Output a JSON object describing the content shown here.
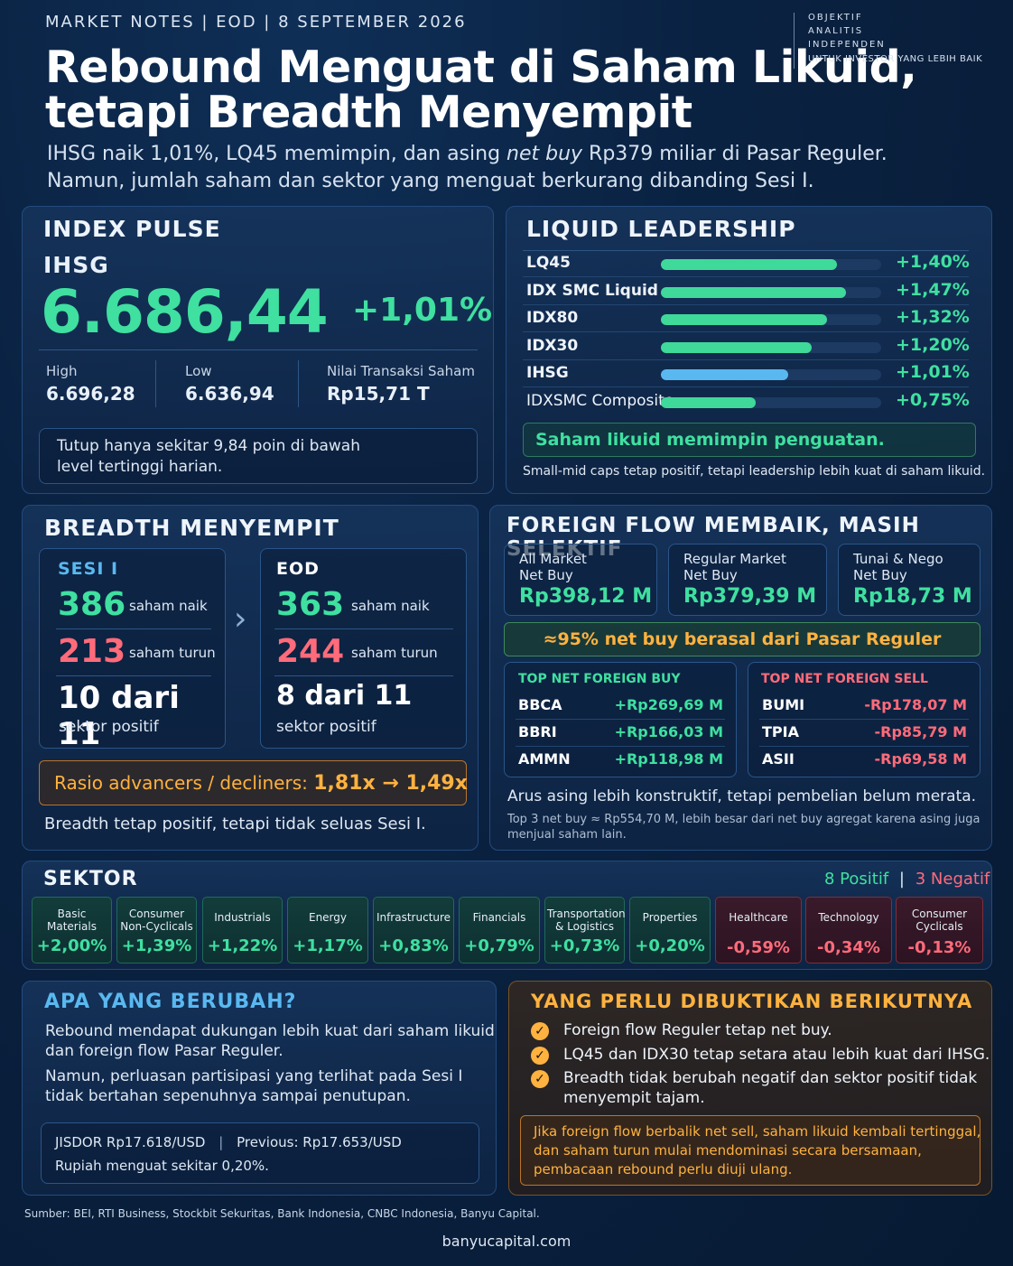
{
  "header": {
    "kicker": "MARKET NOTES | EOD | 8 SEPTEMBER 2026",
    "title_line1": "Rebound Menguat di Saham Likuid,",
    "title_line2": "tetapi Breadth Menyempit",
    "sub_line1_a": "IHSG naik 1,01%, LQ45 memimpin, dan asing ",
    "sub_line1_em": "net buy",
    "sub_line1_b": " Rp379 miliar di Pasar Reguler.",
    "sub_line2": "Namun, jumlah saham dan sektor yang menguat berkurang dibanding Sesi I.",
    "brand_l1": "OBJEKTIF",
    "brand_l2": "ANALITIS",
    "brand_l3": "INDEPENDEN",
    "brand_l4": "UNTUK INVESTOR YANG LEBIH BAIK"
  },
  "index_pulse": {
    "title": "INDEX PULSE",
    "index_name": "IHSG",
    "value": "6.686,44",
    "change": "+1,01%",
    "high_label": "High",
    "high_value": "6.696,28",
    "low_label": "Low",
    "low_value": "6.636,94",
    "tx_label": "Nilai Transaksi Saham",
    "tx_value": "Rp15,71 T",
    "note_l1": "Tutup hanya sekitar 9,84 poin di bawah",
    "note_l2": "level tertinggi harian."
  },
  "liquid": {
    "title": "LIQUID LEADERSHIP",
    "rows": [
      {
        "name": "LQ45",
        "value": "+1,40%",
        "pct": 1.4,
        "color": "#3fd99a"
      },
      {
        "name": "IDX SMC Liquid",
        "value": "+1,47%",
        "pct": 1.47,
        "color": "#3fd99a"
      },
      {
        "name": "IDX80",
        "value": "+1,32%",
        "pct": 1.32,
        "color": "#3fd99a"
      },
      {
        "name": "IDX30",
        "value": "+1,20%",
        "pct": 1.2,
        "color": "#3fd99a"
      },
      {
        "name": "IHSG",
        "value": "+1,01%",
        "pct": 1.01,
        "color": "#5ab8f0"
      },
      {
        "name": "IDXSMC Composite",
        "value": "+0,75%",
        "pct": 0.75,
        "color": "#3fd99a"
      }
    ],
    "callout": "Saham likuid memimpin penguatan.",
    "footnote": "Small-mid caps tetap positif, tetapi leadership lebih kuat di saham likuid."
  },
  "breadth": {
    "title": "BREADTH MENYEMPIT",
    "s1_label": "SESI I",
    "s1_up": "386",
    "s1_down": "213",
    "s1_sector": "10 dari 11",
    "eod_label": "EOD",
    "eod_up": "363",
    "eod_down": "244",
    "eod_sector": "8 dari 11",
    "up_text": "saham naik",
    "down_text": "saham turun",
    "sector_text": "sektor positif",
    "arrow": "›",
    "ratio_label": "Rasio advancers / decliners: ",
    "ratio_value": "1,81x → 1,49x",
    "footnote": "Breadth tetap positif, tetapi tidak seluas Sesi I."
  },
  "foreign": {
    "title": "FOREIGN FLOW MEMBAIK, MASIH SELEKTIF",
    "cards": [
      {
        "l1": "All Market",
        "l2": "Net Buy",
        "value": "Rp398,12 M"
      },
      {
        "l1": "Regular Market",
        "l2": "Net Buy",
        "value": "Rp379,39 M"
      },
      {
        "l1": "Tunai & Nego",
        "l2": "Net Buy",
        "value": "Rp18,73 M"
      }
    ],
    "banner": "≈95% net buy berasal dari Pasar Reguler",
    "buy_title": "TOP NET FOREIGN BUY",
    "buy": [
      {
        "ticker": "BBCA",
        "value": "+Rp269,69 M"
      },
      {
        "ticker": "BBRI",
        "value": "+Rp166,03 M"
      },
      {
        "ticker": "AMMN",
        "value": "+Rp118,98 M"
      }
    ],
    "sell_title": "TOP NET FOREIGN SELL",
    "sell": [
      {
        "ticker": "BUMI",
        "value": "-Rp178,07 M"
      },
      {
        "ticker": "TPIA",
        "value": "-Rp85,79 M"
      },
      {
        "ticker": "ASII",
        "value": "-Rp69,58 M"
      }
    ],
    "note": "Arus asing lebih konstruktif, tetapi pembelian belum merata.",
    "fine_l1": "Top 3 net buy ≈ Rp554,70 M, lebih besar dari net buy agregat karena asing juga",
    "fine_l2": "menjual saham lain."
  },
  "sektor": {
    "title": "SEKTOR",
    "pos_count": "8 Positif",
    "sep": "|",
    "neg_count": "3 Negatif",
    "tiles": [
      {
        "l1": "Basic",
        "l2": "Materials",
        "value": "+2,00%",
        "sign": "pos"
      },
      {
        "l1": "Consumer",
        "l2": "Non-Cyclicals",
        "value": "+1,39%",
        "sign": "pos"
      },
      {
        "l1": "Industrials",
        "l2": "",
        "value": "+1,22%",
        "sign": "pos"
      },
      {
        "l1": "Energy",
        "l2": "",
        "value": "+1,17%",
        "sign": "pos"
      },
      {
        "l1": "Infrastructure",
        "l2": "",
        "value": "+0,83%",
        "sign": "pos"
      },
      {
        "l1": "Financials",
        "l2": "",
        "value": "+0,79%",
        "sign": "pos"
      },
      {
        "l1": "Transportation",
        "l2": "& Logistics",
        "value": "+0,73%",
        "sign": "pos"
      },
      {
        "l1": "Properties",
        "l2": "",
        "value": "+0,20%",
        "sign": "pos"
      },
      {
        "l1": "Healthcare",
        "l2": "",
        "value": "-0,59%",
        "sign": "neg"
      },
      {
        "l1": "Technology",
        "l2": "",
        "value": "-0,34%",
        "sign": "neg"
      },
      {
        "l1": "Consumer",
        "l2": "Cyclicals",
        "value": "-0,13%",
        "sign": "neg"
      }
    ]
  },
  "berubah": {
    "title": "APA YANG BERUBAH?",
    "p1_l1": "Rebound mendapat dukungan lebih kuat dari saham likuid",
    "p1_l2": "dan foreign flow Pasar Reguler.",
    "p2_l1": "Namun, perluasan partisipasi yang terlihat pada Sesi I",
    "p2_l2": "tidak bertahan sepenuhnya sampai penutupan.",
    "jisdor": "JISDOR Rp17.618/USD",
    "sep": "|",
    "previous": "Previous: Rp17.653/USD",
    "rupiah": "Rupiah menguat sekitar 0,20%."
  },
  "next": {
    "title": "YANG PERLU DIBUKTIKAN BERIKUTNYA",
    "check": "✓",
    "items": [
      {
        "l1": "Foreign flow Reguler tetap net buy.",
        "l2": ""
      },
      {
        "l1": "LQ45 dan IDX30 tetap setara atau lebih kuat dari IHSG.",
        "l2": ""
      },
      {
        "l1": "Breadth tidak berubah negatif dan sektor positif tidak",
        "l2": "menyempit tajam."
      }
    ],
    "warn_l1": "Jika foreign flow berbalik net sell, saham likuid kembali tertinggal,",
    "warn_l2": "dan saham turun mulai mendominasi secara bersamaan,",
    "warn_l3": "pembacaan rebound perlu diuji ulang."
  },
  "footer": {
    "source": "Sumber: BEI, RTI Business, Stockbit Sekuritas, Bank Indonesia, CNBC Indonesia, Banyu Capital.",
    "site": "banyucapital.com"
  }
}
